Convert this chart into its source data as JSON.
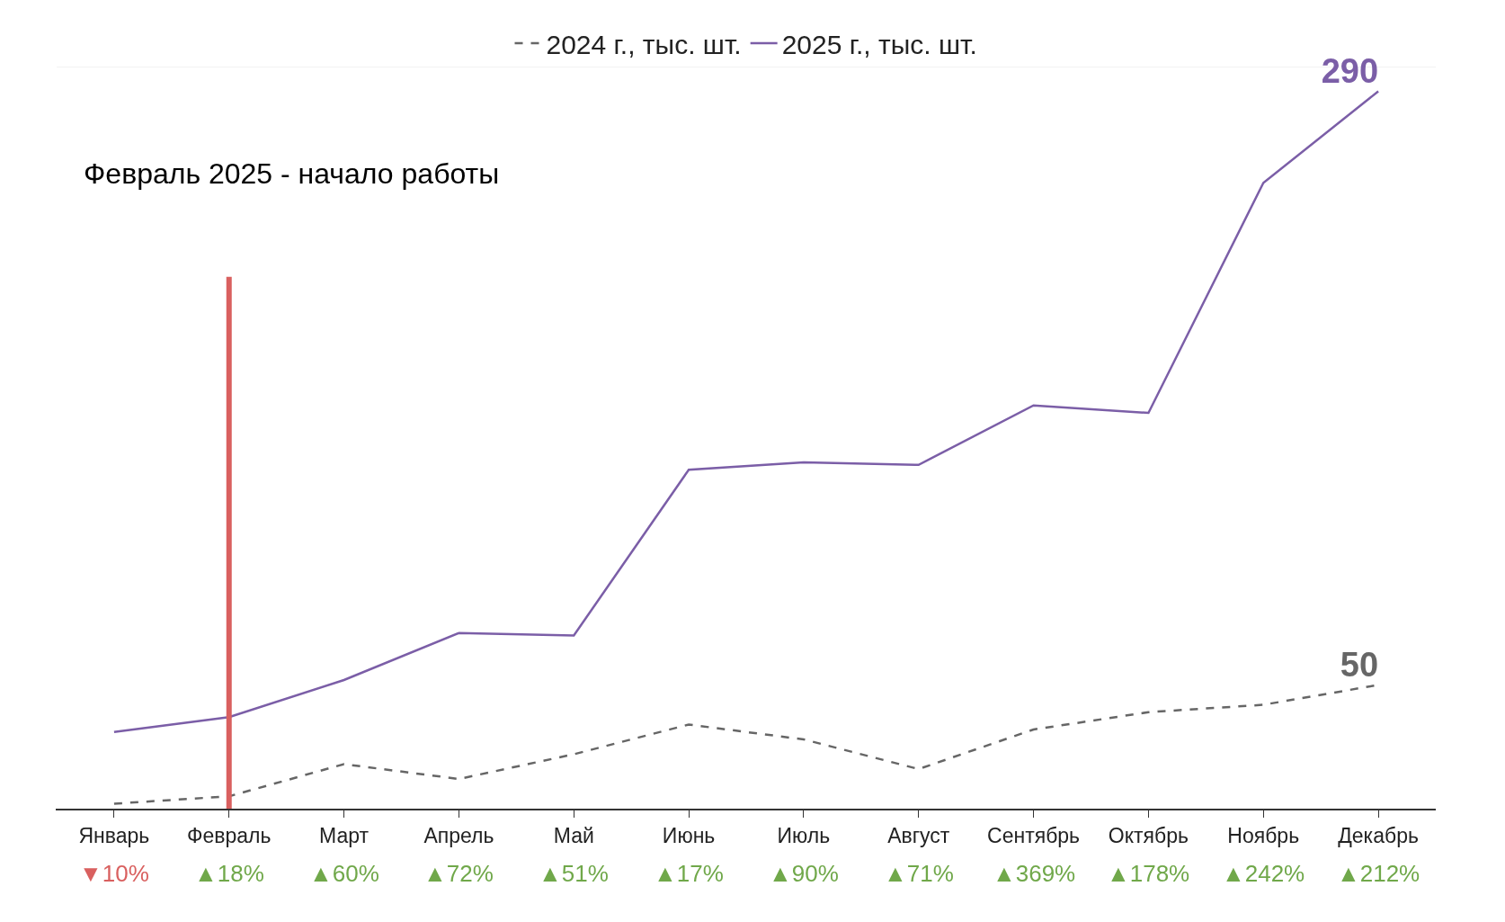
{
  "chart_data": {
    "type": "line",
    "categories": [
      "Январь",
      "Февраль",
      "Март",
      "Апрель",
      "Май",
      "Июнь",
      "Июль",
      "Август",
      "Сентябрь",
      "Октябрь",
      "Ноябрь",
      "Декабрь"
    ],
    "series": [
      {
        "name": "2024 г., тыс. шт.",
        "color": "#666666",
        "line_style": "dashed",
        "values": [
          2,
          5,
          18,
          12,
          22,
          34,
          28,
          16,
          32,
          39,
          42,
          50
        ],
        "value_labels": [
          null,
          null,
          null,
          null,
          null,
          null,
          null,
          null,
          null,
          null,
          null,
          "50"
        ]
      },
      {
        "name": "2025 г., тыс. шт.",
        "color": "#7b5ea7",
        "line_style": "solid",
        "values": [
          31,
          37,
          52,
          71,
          70,
          137,
          140,
          139,
          163,
          160,
          253,
          290
        ],
        "value_labels": [
          null,
          null,
          null,
          null,
          null,
          null,
          null,
          null,
          null,
          null,
          null,
          "290"
        ]
      }
    ],
    "ylim": [
      0,
      300
    ],
    "tick_labels": "x",
    "legend": "top",
    "marker": "none",
    "ref_lines": [
      {
        "axis": "x",
        "value": "Февраль",
        "color": "#d9605f"
      }
    ],
    "annotations": [
      "Февраль 2025 - начало работы",
      "▼10%",
      "▲18%",
      "▲60%",
      "▲72%",
      "▲51%",
      "▲17%",
      "▲90%",
      "▲71%",
      "▲369%",
      "▲178%",
      "▲242%",
      "▲212%"
    ]
  }
}
